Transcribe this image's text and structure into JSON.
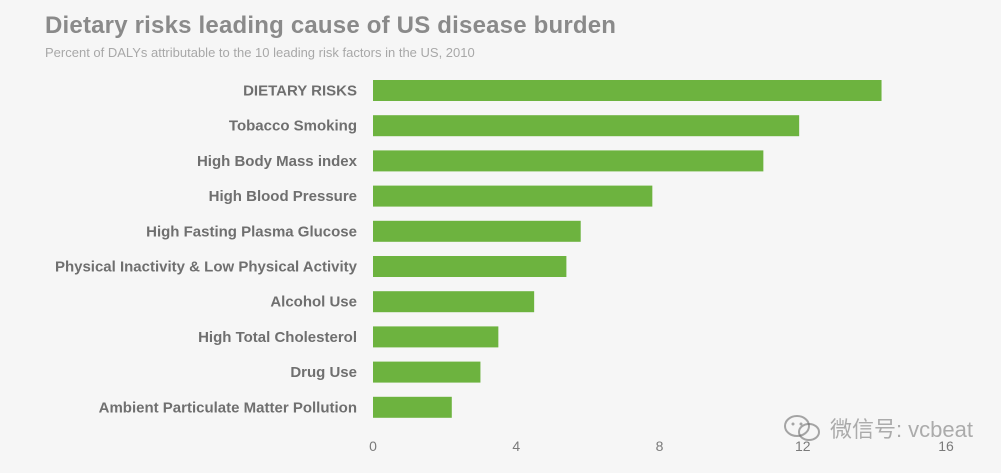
{
  "chart_data": {
    "type": "bar",
    "orientation": "horizontal",
    "title": "Dietary risks leading cause of US disease burden",
    "subtitle": "Percent of DALYs attributable to the 10 leading risk factors in the US, 2010",
    "categories": [
      "DIETARY RISKS",
      "Tobacco Smoking",
      "High Body Mass index",
      "High Blood Pressure",
      "High Fasting Plasma Glucose",
      "Physical Inactivity & Low Physical Activity",
      "Alcohol Use",
      "High Total Cholesterol",
      "Drug Use",
      "Ambient Particulate Matter Pollution"
    ],
    "values": [
      14.2,
      11.9,
      10.9,
      7.8,
      5.8,
      5.4,
      4.5,
      3.5,
      3.0,
      2.2
    ],
    "xticks": [
      "0",
      "4",
      "8",
      "12",
      "16"
    ],
    "xlim": [
      0,
      16
    ],
    "xlabel": "",
    "ylabel": "",
    "bar_color": "#6db33f"
  },
  "watermark": {
    "text": "微信号: vcbeat",
    "icon": "wechat-icon"
  }
}
